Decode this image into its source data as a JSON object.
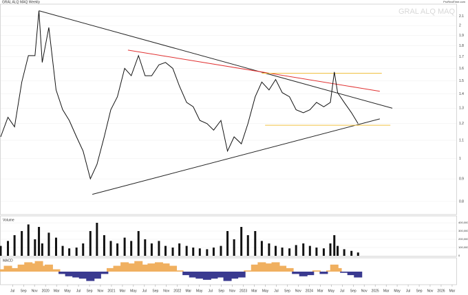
{
  "chart_data": {
    "type": "line",
    "title": "GRAL ALQ MAQ Weekly",
    "watermark": "GRAL ALQ MAQ",
    "source": "ProRealTime.com",
    "log_scale": true,
    "xlim": [
      2019.32,
      2026.23
    ],
    "ylim": [
      0.78,
      2.22
    ],
    "yticks": [
      0.8,
      0.9,
      1,
      1.1,
      1.2,
      1.3,
      1.4,
      1.5,
      1.6,
      1.7,
      1.8,
      1.9,
      2,
      2.1
    ],
    "xticks": [
      {
        "value": 2019.5,
        "label": "Jul"
      },
      {
        "value": 2019.667,
        "label": "Sep"
      },
      {
        "value": 2019.833,
        "label": "Nov"
      },
      {
        "value": 2020,
        "label": "2020"
      },
      {
        "value": 2020.167,
        "label": "Mar"
      },
      {
        "value": 2020.333,
        "label": "May"
      },
      {
        "value": 2020.5,
        "label": "Jul"
      },
      {
        "value": 2020.667,
        "label": "Sep"
      },
      {
        "value": 2020.833,
        "label": "Nov"
      },
      {
        "value": 2021,
        "label": "2021"
      },
      {
        "value": 2021.167,
        "label": "Mar"
      },
      {
        "value": 2021.333,
        "label": "May"
      },
      {
        "value": 2021.5,
        "label": "Jul"
      },
      {
        "value": 2021.667,
        "label": "Sep"
      },
      {
        "value": 2021.833,
        "label": "Nov"
      },
      {
        "value": 2022,
        "label": "2022"
      },
      {
        "value": 2022.167,
        "label": "Mar"
      },
      {
        "value": 2022.333,
        "label": "May"
      },
      {
        "value": 2022.5,
        "label": "Jul"
      },
      {
        "value": 2022.667,
        "label": "Sep"
      },
      {
        "value": 2022.833,
        "label": "Nov"
      },
      {
        "value": 2023,
        "label": "2023"
      },
      {
        "value": 2023.167,
        "label": "Mar"
      },
      {
        "value": 2023.333,
        "label": "May"
      },
      {
        "value": 2023.5,
        "label": "Jul"
      },
      {
        "value": 2023.667,
        "label": "Sep"
      },
      {
        "value": 2023.833,
        "label": "Nov"
      },
      {
        "value": 2024,
        "label": "2024"
      },
      {
        "value": 2024.167,
        "label": "Mar"
      },
      {
        "value": 2024.333,
        "label": "May"
      },
      {
        "value": 2024.5,
        "label": "Jul"
      },
      {
        "value": 2024.667,
        "label": "Sep"
      },
      {
        "value": 2024.833,
        "label": "Nov"
      },
      {
        "value": 2025,
        "label": "2025"
      },
      {
        "value": 2025.167,
        "label": "Mar"
      },
      {
        "value": 2025.333,
        "label": "May"
      },
      {
        "value": 2025.5,
        "label": "Jul"
      },
      {
        "value": 2025.667,
        "label": "Sep"
      },
      {
        "value": 2025.833,
        "label": "Nov"
      },
      {
        "value": 2026,
        "label": "2026"
      },
      {
        "value": 2026.167,
        "label": "Mar"
      }
    ],
    "x": [
      2019.32,
      2019.43,
      2019.53,
      2019.64,
      2019.74,
      2019.84,
      2019.9,
      2019.95,
      2020.05,
      2020.16,
      2020.26,
      2020.36,
      2020.47,
      2020.57,
      2020.68,
      2020.78,
      2020.89,
      2020.99,
      2021.09,
      2021.2,
      2021.3,
      2021.41,
      2021.51,
      2021.61,
      2021.72,
      2021.82,
      2021.93,
      2022.03,
      2022.14,
      2022.24,
      2022.34,
      2022.45,
      2022.55,
      2022.66,
      2022.76,
      2022.86,
      2022.97,
      2023.07,
      2023.18,
      2023.28,
      2023.39,
      2023.49,
      2023.59,
      2023.7,
      2023.8,
      2023.91,
      2024.01,
      2024.11,
      2024.22,
      2024.32,
      2024.38,
      2024.43,
      2024.53,
      2024.64,
      2024.74
    ],
    "series": [
      {
        "color": "#111111",
        "values": [
          1.12,
          1.24,
          1.18,
          1.49,
          1.71,
          1.71,
          2.16,
          1.65,
          1.98,
          1.43,
          1.29,
          1.22,
          1.12,
          1.04,
          0.9,
          0.97,
          1.12,
          1.29,
          1.38,
          1.6,
          1.54,
          1.71,
          1.54,
          1.54,
          1.63,
          1.65,
          1.6,
          1.46,
          1.34,
          1.31,
          1.22,
          1.2,
          1.16,
          1.22,
          1.04,
          1.12,
          1.08,
          1.2,
          1.38,
          1.49,
          1.43,
          1.51,
          1.41,
          1.38,
          1.29,
          1.27,
          1.29,
          1.34,
          1.31,
          1.34,
          1.57,
          1.41,
          1.34,
          1.27,
          1.2
        ]
      }
    ],
    "trendlines": [
      {
        "color": "#222222",
        "x": [
          2019.9,
          2025.26
        ],
        "y": [
          2.16,
          1.3
        ]
      },
      {
        "color": "#222222",
        "x": [
          2020.71,
          2025.07
        ],
        "y": [
          0.83,
          1.23
        ]
      },
      {
        "color": "#e03030",
        "x": [
          2021.25,
          2025.07
        ],
        "y": [
          1.76,
          1.42
        ]
      },
      {
        "color": "#f0c040",
        "x": [
          2023.28,
          2025.1
        ],
        "y": [
          1.56,
          1.56
        ]
      },
      {
        "color": "#f0c040",
        "x": [
          2023.33,
          2025.23
        ],
        "y": [
          1.19,
          1.19
        ]
      }
    ],
    "volume": {
      "name": "Volume",
      "color": "#111111",
      "ylim": [
        0,
        450000
      ],
      "yticks": [
        {
          "value": 0,
          "label": "0"
        },
        {
          "value": 100000,
          "label": "100,000"
        },
        {
          "value": 200000,
          "label": "200,000"
        },
        {
          "value": 300000,
          "label": "300,000"
        },
        {
          "value": 400000,
          "label": "400,000"
        }
      ],
      "values": [
        120000,
        180000,
        250000,
        300000,
        380000,
        200000,
        350000,
        150000,
        280000,
        220000,
        120000,
        90000,
        100000,
        150000,
        300000,
        400000,
        250000,
        180000,
        150000,
        220000,
        180000,
        300000,
        200000,
        150000,
        180000,
        120000,
        100000,
        150000,
        120000,
        100000,
        90000,
        80000,
        100000,
        120000,
        300000,
        200000,
        350000,
        250000,
        300000,
        180000,
        150000,
        120000,
        100000,
        90000,
        130000,
        150000,
        120000,
        100000,
        90000,
        150000,
        250000,
        120000,
        80000,
        60000,
        40000
      ]
    },
    "indicator": {
      "name": "MACD",
      "ylim": [
        -1,
        1
      ],
      "colors": [
        "#f0b060",
        "#3a3a90"
      ],
      "values": [
        0.2,
        0.5,
        0.3,
        0.6,
        0.8,
        0.7,
        0.9,
        0.5,
        0.6,
        0.2,
        -0.2,
        -0.4,
        -0.5,
        -0.6,
        -0.8,
        -0.6,
        -0.2,
        0.3,
        0.5,
        0.8,
        0.7,
        0.9,
        0.6,
        0.7,
        0.8,
        0.7,
        0.5,
        0.1,
        -0.3,
        -0.5,
        -0.6,
        -0.7,
        -0.6,
        -0.5,
        -0.8,
        -0.6,
        -0.5,
        0.1,
        0.6,
        0.8,
        0.7,
        0.8,
        0.5,
        0.3,
        -0.2,
        -0.4,
        -0.3,
        0.1,
        -0.2,
        0.1,
        0.6,
        0.3,
        -0.1,
        -0.3,
        -0.5
      ]
    }
  }
}
